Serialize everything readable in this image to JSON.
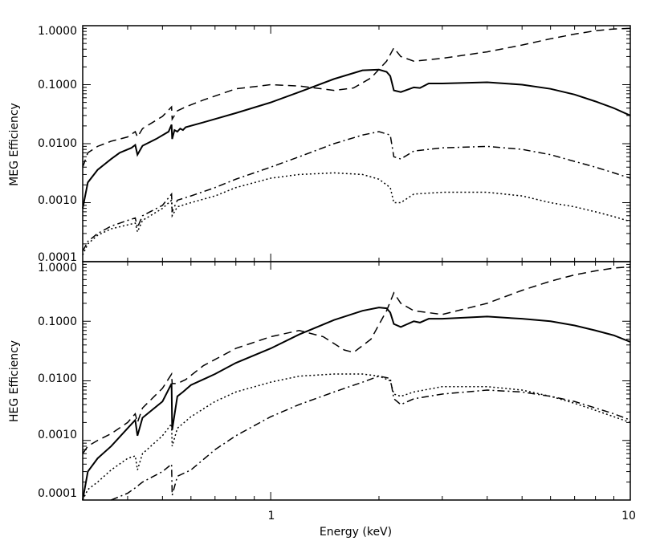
{
  "chart_data": [
    {
      "type": "line",
      "ylabel": "MEG Efficiency",
      "xscale": "log",
      "yscale": "log",
      "xlim": [
        0.3,
        10
      ],
      "ylim": [
        0.0001,
        1.0
      ],
      "x_tick_labels": [
        "1",
        "10"
      ],
      "y_tick_labels": [
        "0.0001",
        "0.0010",
        "0.0100",
        "0.1000",
        "1.0000"
      ],
      "series": [
        {
          "name": "solid",
          "dash": "solid",
          "points": [
            [
              0.3,
              0.0008
            ],
            [
              0.31,
              0.0022
            ],
            [
              0.33,
              0.0036
            ],
            [
              0.36,
              0.0055
            ],
            [
              0.38,
              0.007
            ],
            [
              0.41,
              0.0085
            ],
            [
              0.42,
              0.0095
            ],
            [
              0.426,
              0.0065
            ],
            [
              0.44,
              0.0092
            ],
            [
              0.48,
              0.012
            ],
            [
              0.52,
              0.016
            ],
            [
              0.53,
              0.021
            ],
            [
              0.532,
              0.012
            ],
            [
              0.54,
              0.017
            ],
            [
              0.55,
              0.016
            ],
            [
              0.56,
              0.018
            ],
            [
              0.57,
              0.017
            ],
            [
              0.58,
              0.019
            ],
            [
              0.65,
              0.023
            ],
            [
              0.8,
              0.033
            ],
            [
              1.0,
              0.05
            ],
            [
              1.2,
              0.075
            ],
            [
              1.5,
              0.125
            ],
            [
              1.8,
              0.175
            ],
            [
              2.0,
              0.18
            ],
            [
              2.1,
              0.165
            ],
            [
              2.15,
              0.14
            ],
            [
              2.2,
              0.08
            ],
            [
              2.3,
              0.075
            ],
            [
              2.5,
              0.09
            ],
            [
              2.6,
              0.088
            ],
            [
              2.75,
              0.105
            ],
            [
              3.0,
              0.105
            ],
            [
              4.0,
              0.11
            ],
            [
              5.0,
              0.1
            ],
            [
              6.0,
              0.085
            ],
            [
              7.0,
              0.068
            ],
            [
              8.0,
              0.052
            ],
            [
              9.0,
              0.04
            ],
            [
              10.0,
              0.03
            ]
          ]
        },
        {
          "name": "dashed",
          "dash": "dashed",
          "points": [
            [
              0.3,
              0.004
            ],
            [
              0.31,
              0.007
            ],
            [
              0.33,
              0.009
            ],
            [
              0.36,
              0.011
            ],
            [
              0.4,
              0.013
            ],
            [
              0.42,
              0.016
            ],
            [
              0.426,
              0.013
            ],
            [
              0.44,
              0.018
            ],
            [
              0.5,
              0.029
            ],
            [
              0.53,
              0.042
            ],
            [
              0.532,
              0.026
            ],
            [
              0.55,
              0.036
            ],
            [
              0.58,
              0.042
            ],
            [
              0.65,
              0.055
            ],
            [
              0.8,
              0.085
            ],
            [
              1.0,
              0.1
            ],
            [
              1.2,
              0.095
            ],
            [
              1.5,
              0.08
            ],
            [
              1.7,
              0.088
            ],
            [
              1.9,
              0.13
            ],
            [
              2.1,
              0.25
            ],
            [
              2.2,
              0.42
            ],
            [
              2.3,
              0.3
            ],
            [
              2.5,
              0.25
            ],
            [
              3.0,
              0.28
            ],
            [
              4.0,
              0.36
            ],
            [
              5.0,
              0.47
            ],
            [
              6.0,
              0.6
            ],
            [
              7.0,
              0.72
            ],
            [
              8.0,
              0.82
            ],
            [
              9.0,
              0.88
            ],
            [
              10.0,
              0.9
            ]
          ]
        },
        {
          "name": "dash-dot",
          "dash": "dash-dot",
          "points": [
            [
              0.3,
              0.00015
            ],
            [
              0.31,
              0.00022
            ],
            [
              0.33,
              0.0003
            ],
            [
              0.36,
              0.0004
            ],
            [
              0.4,
              0.0005
            ],
            [
              0.42,
              0.00055
            ],
            [
              0.426,
              0.00038
            ],
            [
              0.44,
              0.0006
            ],
            [
              0.5,
              0.0009
            ],
            [
              0.53,
              0.0014
            ],
            [
              0.532,
              0.0007
            ],
            [
              0.55,
              0.0011
            ],
            [
              0.6,
              0.0013
            ],
            [
              0.7,
              0.0018
            ],
            [
              0.8,
              0.0025
            ],
            [
              1.0,
              0.004
            ],
            [
              1.2,
              0.006
            ],
            [
              1.5,
              0.01
            ],
            [
              1.8,
              0.014
            ],
            [
              2.0,
              0.016
            ],
            [
              2.15,
              0.014
            ],
            [
              2.2,
              0.006
            ],
            [
              2.3,
              0.0055
            ],
            [
              2.5,
              0.0075
            ],
            [
              3.0,
              0.0085
            ],
            [
              4.0,
              0.009
            ],
            [
              5.0,
              0.008
            ],
            [
              6.0,
              0.0065
            ],
            [
              7.0,
              0.005
            ],
            [
              8.0,
              0.004
            ],
            [
              9.0,
              0.0032
            ],
            [
              10.0,
              0.0026
            ]
          ]
        },
        {
          "name": "dotted",
          "dash": "dotted",
          "points": [
            [
              0.3,
              0.00013
            ],
            [
              0.31,
              0.0002
            ],
            [
              0.33,
              0.00028
            ],
            [
              0.36,
              0.00036
            ],
            [
              0.4,
              0.00042
            ],
            [
              0.42,
              0.00045
            ],
            [
              0.426,
              0.00032
            ],
            [
              0.44,
              0.0005
            ],
            [
              0.5,
              0.0008
            ],
            [
              0.53,
              0.0011
            ],
            [
              0.532,
              0.0006
            ],
            [
              0.55,
              0.00085
            ],
            [
              0.6,
              0.001
            ],
            [
              0.7,
              0.0013
            ],
            [
              0.8,
              0.0018
            ],
            [
              1.0,
              0.0026
            ],
            [
              1.2,
              0.003
            ],
            [
              1.5,
              0.0032
            ],
            [
              1.8,
              0.003
            ],
            [
              2.0,
              0.0025
            ],
            [
              2.15,
              0.0018
            ],
            [
              2.2,
              0.001
            ],
            [
              2.3,
              0.001
            ],
            [
              2.5,
              0.0014
            ],
            [
              3.0,
              0.0015
            ],
            [
              4.0,
              0.0015
            ],
            [
              5.0,
              0.0013
            ],
            [
              6.0,
              0.001
            ],
            [
              7.0,
              0.00085
            ],
            [
              8.0,
              0.0007
            ],
            [
              9.0,
              0.00058
            ],
            [
              10.0,
              0.00048
            ]
          ]
        }
      ]
    },
    {
      "type": "line",
      "ylabel": "HEG Efficiency",
      "xlabel": "Energy (keV)",
      "xscale": "log",
      "yscale": "log",
      "xlim": [
        0.3,
        10
      ],
      "ylim": [
        0.0001,
        1.0
      ],
      "x_tick_labels": [
        "1",
        "10"
      ],
      "y_tick_labels": [
        "0.0001",
        "0.0010",
        "0.0100",
        "0.1000",
        "1.0000"
      ],
      "series": [
        {
          "name": "solid",
          "dash": "solid",
          "points": [
            [
              0.3,
              0.0001
            ],
            [
              0.31,
              0.0003
            ],
            [
              0.33,
              0.0005
            ],
            [
              0.36,
              0.0008
            ],
            [
              0.4,
              0.0016
            ],
            [
              0.42,
              0.0022
            ],
            [
              0.426,
              0.0012
            ],
            [
              0.44,
              0.0024
            ],
            [
              0.5,
              0.0045
            ],
            [
              0.53,
              0.009
            ],
            [
              0.532,
              0.0015
            ],
            [
              0.55,
              0.0055
            ],
            [
              0.57,
              0.0065
            ],
            [
              0.6,
              0.0085
            ],
            [
              0.7,
              0.013
            ],
            [
              0.8,
              0.02
            ],
            [
              1.0,
              0.035
            ],
            [
              1.2,
              0.06
            ],
            [
              1.5,
              0.105
            ],
            [
              1.8,
              0.15
            ],
            [
              2.0,
              0.17
            ],
            [
              2.1,
              0.165
            ],
            [
              2.15,
              0.14
            ],
            [
              2.2,
              0.09
            ],
            [
              2.3,
              0.08
            ],
            [
              2.5,
              0.1
            ],
            [
              2.6,
              0.095
            ],
            [
              2.75,
              0.11
            ],
            [
              3.0,
              0.11
            ],
            [
              4.0,
              0.12
            ],
            [
              5.0,
              0.11
            ],
            [
              6.0,
              0.1
            ],
            [
              7.0,
              0.085
            ],
            [
              8.0,
              0.07
            ],
            [
              9.0,
              0.058
            ],
            [
              10.0,
              0.045
            ]
          ]
        },
        {
          "name": "dashed",
          "dash": "dashed",
          "points": [
            [
              0.3,
              0.0006
            ],
            [
              0.31,
              0.0008
            ],
            [
              0.33,
              0.001
            ],
            [
              0.36,
              0.0013
            ],
            [
              0.4,
              0.002
            ],
            [
              0.42,
              0.0028
            ],
            [
              0.426,
              0.002
            ],
            [
              0.44,
              0.0035
            ],
            [
              0.5,
              0.0075
            ],
            [
              0.53,
              0.013
            ],
            [
              0.532,
              0.009
            ],
            [
              0.55,
              0.009
            ],
            [
              0.58,
              0.0105
            ],
            [
              0.65,
              0.018
            ],
            [
              0.8,
              0.035
            ],
            [
              1.0,
              0.055
            ],
            [
              1.2,
              0.07
            ],
            [
              1.4,
              0.055
            ],
            [
              1.6,
              0.033
            ],
            [
              1.7,
              0.03
            ],
            [
              1.9,
              0.05
            ],
            [
              2.1,
              0.15
            ],
            [
              2.2,
              0.3
            ],
            [
              2.3,
              0.2
            ],
            [
              2.5,
              0.15
            ],
            [
              3.0,
              0.13
            ],
            [
              4.0,
              0.2
            ],
            [
              5.0,
              0.33
            ],
            [
              6.0,
              0.47
            ],
            [
              7.0,
              0.6
            ],
            [
              8.0,
              0.7
            ],
            [
              9.0,
              0.78
            ],
            [
              10.0,
              0.82
            ]
          ]
        },
        {
          "name": "dash-dot",
          "dash": "dash-dot",
          "points": [
            [
              0.36,
              0.0001
            ],
            [
              0.4,
              0.00013
            ],
            [
              0.42,
              0.00016
            ],
            [
              0.44,
              0.0002
            ],
            [
              0.5,
              0.0003
            ],
            [
              0.53,
              0.0004
            ],
            [
              0.532,
              0.00012
            ],
            [
              0.55,
              0.00025
            ],
            [
              0.6,
              0.00032
            ],
            [
              0.7,
              0.0007
            ],
            [
              0.8,
              0.0012
            ],
            [
              1.0,
              0.0025
            ],
            [
              1.2,
              0.004
            ],
            [
              1.5,
              0.0065
            ],
            [
              1.8,
              0.0095
            ],
            [
              2.0,
              0.012
            ],
            [
              2.15,
              0.011
            ],
            [
              2.2,
              0.005
            ],
            [
              2.3,
              0.004
            ],
            [
              2.5,
              0.005
            ],
            [
              3.0,
              0.006
            ],
            [
              4.0,
              0.007
            ],
            [
              5.0,
              0.0065
            ],
            [
              6.0,
              0.0055
            ],
            [
              7.0,
              0.0045
            ],
            [
              8.0,
              0.0035
            ],
            [
              9.0,
              0.0028
            ],
            [
              10.0,
              0.0022
            ]
          ]
        },
        {
          "name": "dotted",
          "dash": "dotted",
          "points": [
            [
              0.3,
              0.0001
            ],
            [
              0.31,
              0.00015
            ],
            [
              0.33,
              0.0002
            ],
            [
              0.36,
              0.00032
            ],
            [
              0.4,
              0.0005
            ],
            [
              0.42,
              0.00055
            ],
            [
              0.426,
              0.00032
            ],
            [
              0.44,
              0.0006
            ],
            [
              0.5,
              0.0012
            ],
            [
              0.53,
              0.0019
            ],
            [
              0.532,
              0.0008
            ],
            [
              0.55,
              0.0016
            ],
            [
              0.6,
              0.0025
            ],
            [
              0.7,
              0.0045
            ],
            [
              0.8,
              0.0065
            ],
            [
              1.0,
              0.0095
            ],
            [
              1.2,
              0.012
            ],
            [
              1.5,
              0.013
            ],
            [
              1.8,
              0.013
            ],
            [
              2.0,
              0.012
            ],
            [
              2.15,
              0.01
            ],
            [
              2.2,
              0.006
            ],
            [
              2.3,
              0.0055
            ],
            [
              2.5,
              0.0065
            ],
            [
              3.0,
              0.008
            ],
            [
              4.0,
              0.008
            ],
            [
              5.0,
              0.007
            ],
            [
              6.0,
              0.0055
            ],
            [
              7.0,
              0.0042
            ],
            [
              8.0,
              0.0032
            ],
            [
              9.0,
              0.0025
            ],
            [
              10.0,
              0.002
            ]
          ]
        }
      ]
    }
  ]
}
